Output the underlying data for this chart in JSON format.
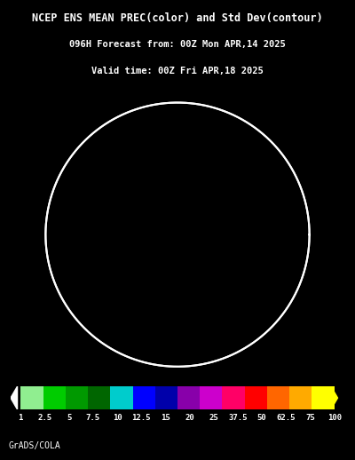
{
  "title_line1": "NCEP ENS MEAN PREC(color) and Std Dev(contour)",
  "title_line2": "096H Forecast from: 00Z Mon APR,14 2025",
  "title_line3": "Valid time: 00Z Fri APR,18 2025",
  "colorbar_labels": [
    "1",
    "2.5",
    "5",
    "7.5",
    "10",
    "12.5",
    "15",
    "20",
    "25",
    "37.5",
    "50",
    "62.5",
    "75",
    "100"
  ],
  "colorbar_colors": [
    "#ffffff",
    "#90ee90",
    "#00cc00",
    "#009900",
    "#006600",
    "#00cccc",
    "#0000ff",
    "#0000aa",
    "#8800aa",
    "#cc00cc",
    "#ff0066",
    "#ff0000",
    "#ff6600",
    "#ffaa00",
    "#ffff00"
  ],
  "background_color": "#000000",
  "map_bg": "#000000",
  "land_color": "#000000",
  "credit": "GrADS/COLA",
  "fig_width": 4.0,
  "fig_height": 5.18
}
